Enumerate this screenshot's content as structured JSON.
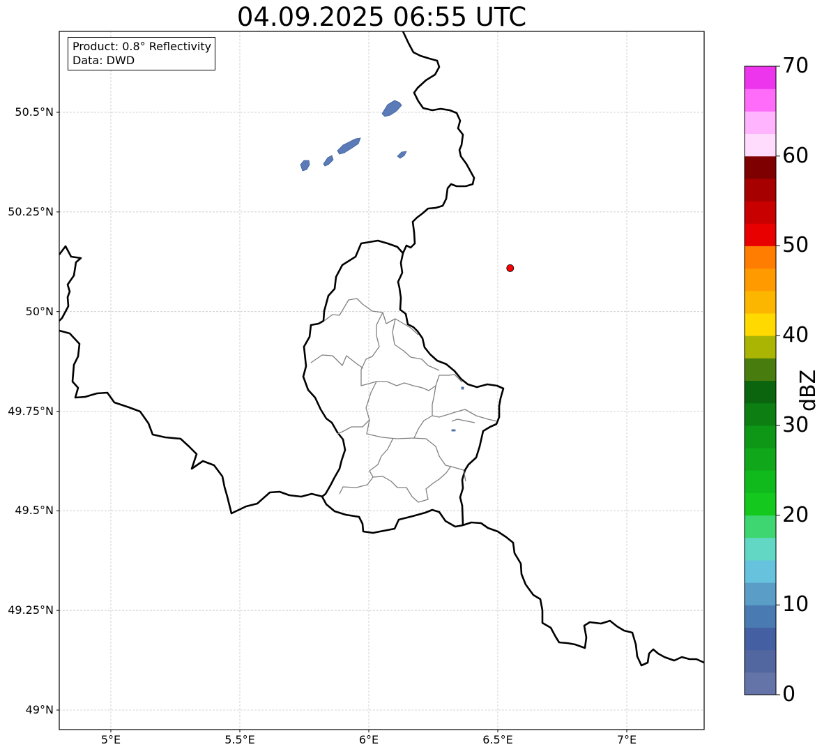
{
  "title": "04.09.2025 06:55 UTC",
  "info": {
    "product": "Product: 0.8° Reflectivity",
    "data_source": "Data: DWD"
  },
  "map": {
    "lon_range": [
      4.8,
      7.3
    ],
    "lat_range": [
      48.95,
      50.7
    ],
    "gridlines": true,
    "lat_ticks": [
      {
        "value": 50.5,
        "label": "50.5°N"
      },
      {
        "value": 50.25,
        "label": "50.25°N"
      },
      {
        "value": 50.0,
        "label": "50°N"
      },
      {
        "value": 49.75,
        "label": "49.75°N"
      },
      {
        "value": 49.5,
        "label": "49.5°N"
      },
      {
        "value": 49.25,
        "label": "49.25°N"
      },
      {
        "value": 49.0,
        "label": "49°N"
      }
    ],
    "lon_ticks": [
      {
        "value": 5.0,
        "label": "5°E"
      },
      {
        "value": 5.5,
        "label": "5.5°E"
      },
      {
        "value": 6.0,
        "label": "6°E"
      },
      {
        "value": 6.5,
        "label": "6.5°E"
      },
      {
        "value": 7.0,
        "label": "7°E"
      }
    ],
    "radar_site": {
      "lon": 6.548,
      "lat": 50.109,
      "color": "#ff0000"
    },
    "echo_color": "#5a7ab8"
  },
  "colorbar": {
    "label": "dBZ",
    "min": 0,
    "max": 70,
    "step": 2.5,
    "tick_labels": [
      "0",
      "10",
      "20",
      "30",
      "40",
      "50",
      "60",
      "70"
    ],
    "colors": [
      "#6574a8",
      "#5266a0",
      "#4460a2",
      "#4a7ab2",
      "#5a9ec8",
      "#66c2dd",
      "#62d8c4",
      "#3ed670",
      "#14c81e",
      "#10ba1c",
      "#10a81a",
      "#0e9616",
      "#0c7e12",
      "#0b640e",
      "#487c0e",
      "#aab402",
      "#ffd900",
      "#fdb600",
      "#ff9a00",
      "#ff7d00",
      "#e80000",
      "#c80000",
      "#a60000",
      "#7e0000",
      "#ffdcfd",
      "#ffb4fd",
      "#ff6cfa",
      "#ee35ee"
    ]
  }
}
